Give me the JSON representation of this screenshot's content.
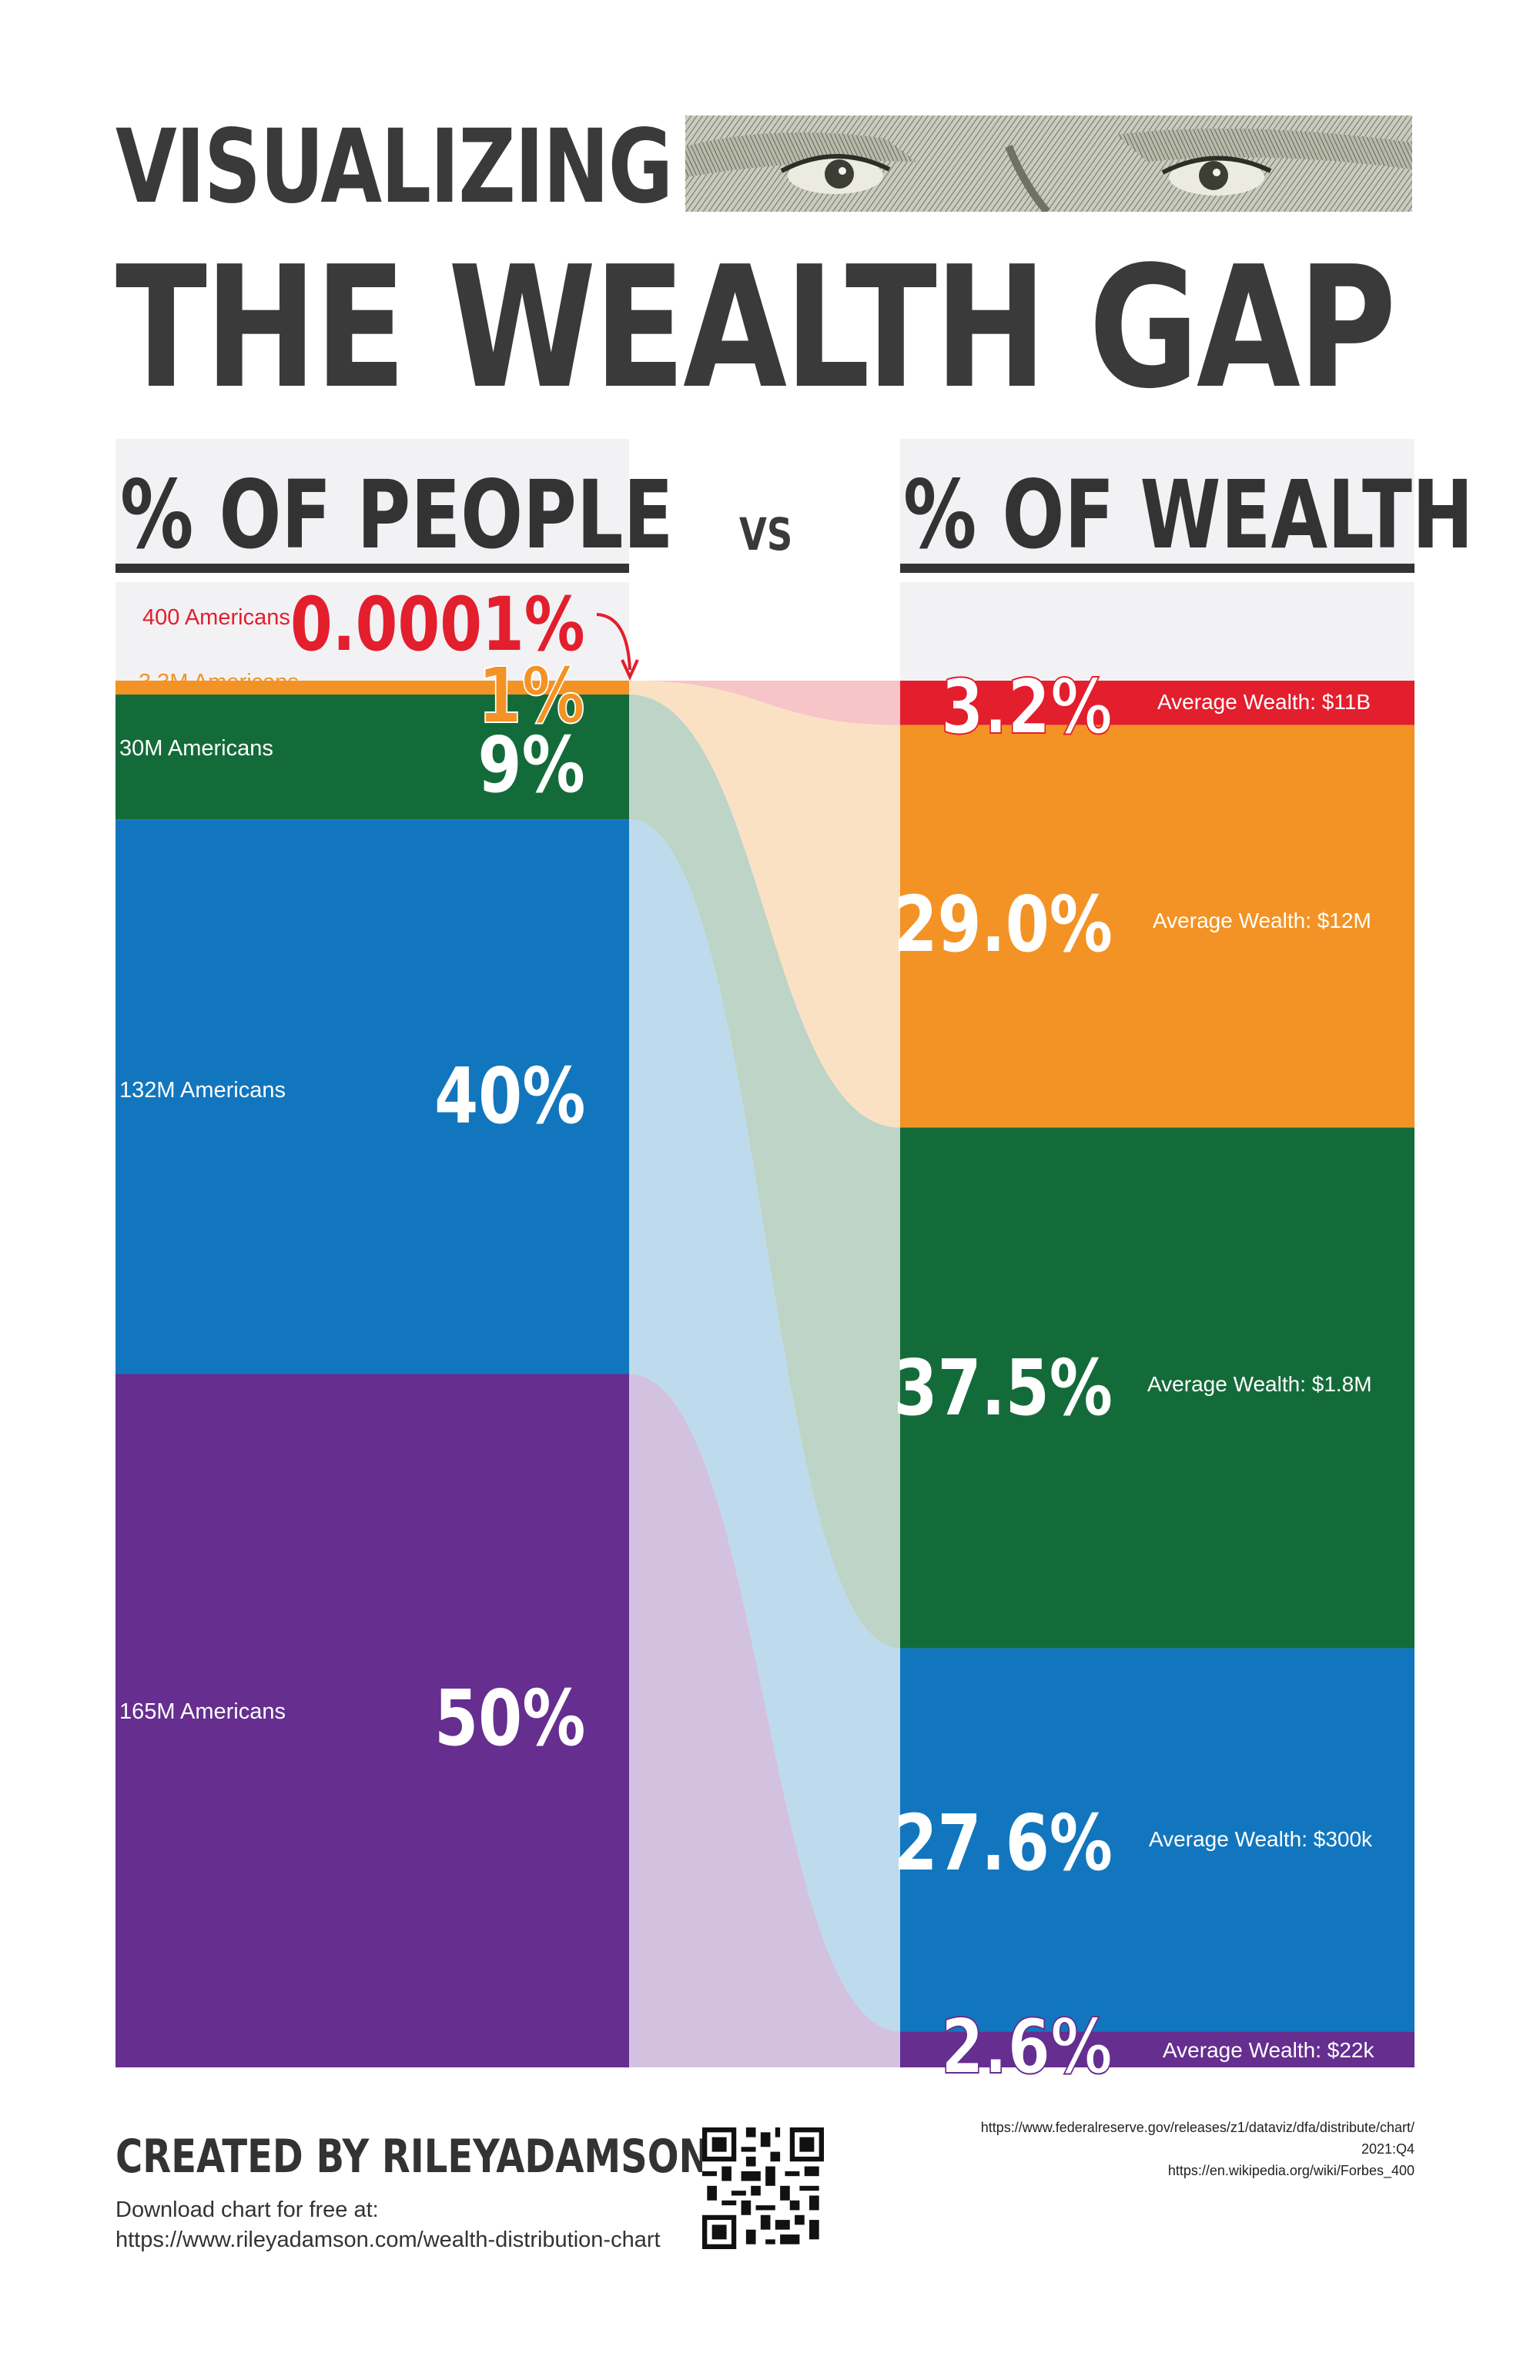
{
  "title": {
    "line1": "VISUALIZING",
    "line2": "THE WEALTH GAP"
  },
  "columns": {
    "left": "% OF PEOPLE",
    "vs": "VS",
    "right": "% OF WEALTH"
  },
  "colors": {
    "red": "#e31e2d",
    "orange": "#f39325",
    "green": "#146b3a",
    "blue": "#1276be",
    "purple": "#652e8f",
    "gray": "#f2f2f4"
  },
  "chart_data": {
    "type": "sankey",
    "groups": [
      {
        "people_label": "400 Americans",
        "people_pct_label": "0.0001%",
        "people_pct": 0.0001,
        "wealth_pct_label": "3.2%",
        "wealth_pct": 3.2,
        "avg_wealth": "Average Wealth: $11B",
        "color": "#e31e2d"
      },
      {
        "people_label": "3.3M Americans",
        "people_pct_label": "1%",
        "people_pct": 1,
        "wealth_pct_label": "29.0%",
        "wealth_pct": 29.0,
        "avg_wealth": "Average Wealth: $12M",
        "color": "#f39325"
      },
      {
        "people_label": "30M Americans",
        "people_pct_label": "9%",
        "people_pct": 9,
        "wealth_pct_label": "37.5%",
        "wealth_pct": 37.5,
        "avg_wealth": "Average Wealth: $1.8M",
        "color": "#146b3a"
      },
      {
        "people_label": "132M Americans",
        "people_pct_label": "40%",
        "people_pct": 40,
        "wealth_pct_label": "27.6%",
        "wealth_pct": 27.6,
        "avg_wealth": "Average Wealth: $300k",
        "color": "#1276be"
      },
      {
        "people_label": "165M Americans",
        "people_pct_label": "50%",
        "people_pct": 50,
        "wealth_pct_label": "2.6%",
        "wealth_pct": 2.6,
        "avg_wealth": "Average Wealth: $22k",
        "color": "#652e8f"
      }
    ]
  },
  "footer": {
    "credit": "CREATED BY RILEYADAMSON.COM",
    "download_line1": "Download chart for free at:",
    "download_line2": "https://www.rileyadamson.com/wealth-distribution-chart"
  },
  "sources": {
    "line1": "https://www.federalreserve.gov/releases/z1/dataviz/dfa/distribute/chart/",
    "line2": "2021:Q4",
    "line3": "https://en.wikipedia.org/wiki/Forbes_400"
  }
}
